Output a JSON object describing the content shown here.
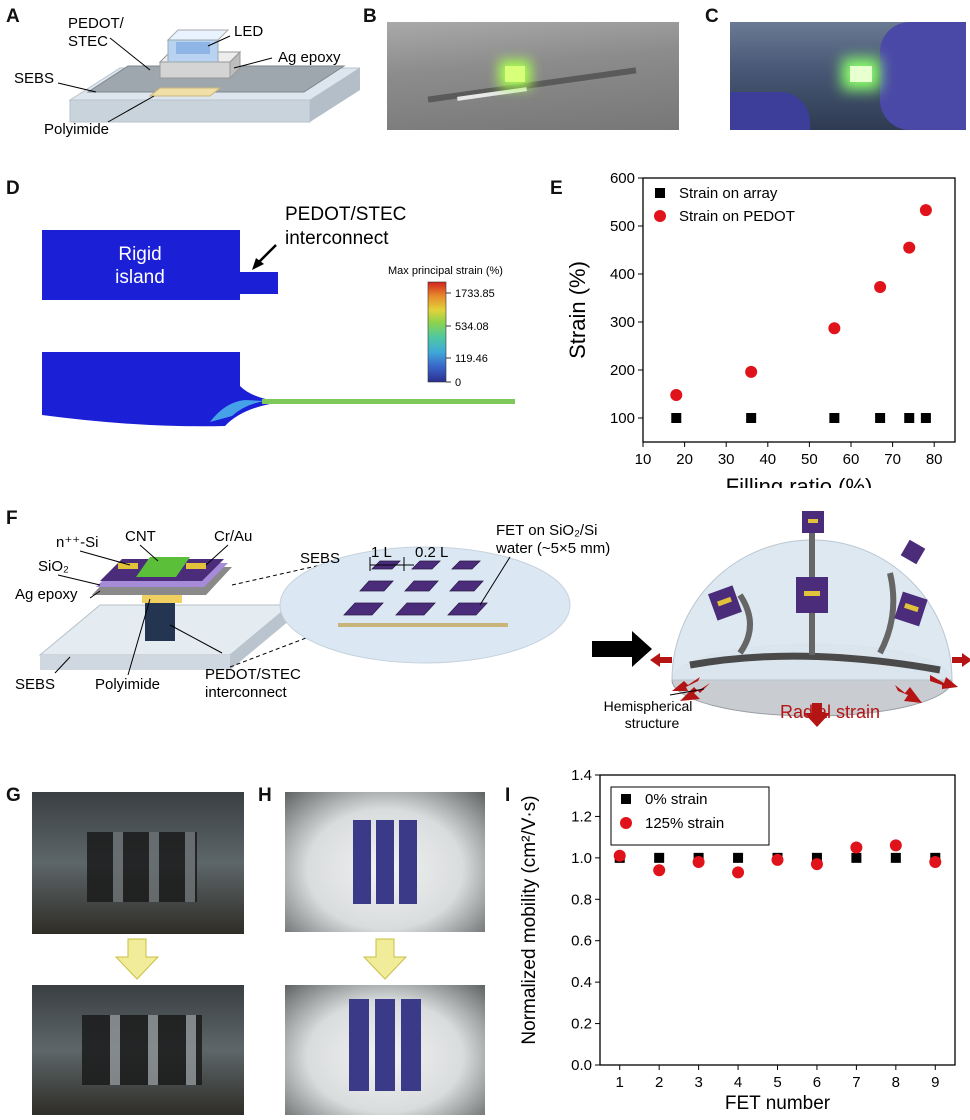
{
  "panel_labels": [
    "A",
    "B",
    "C",
    "D",
    "E",
    "F",
    "G",
    "H",
    "I"
  ],
  "panel_a": {
    "pedot": "PEDOT/",
    "stec": "STEC",
    "led": "LED",
    "ag_epoxy": "Ag epoxy",
    "sebs": "SEBS",
    "polyimide": "Polyimide"
  },
  "panel_d": {
    "island_line1": "Rigid",
    "island_line2": "island",
    "interconnect_line1": "PEDOT/STEC",
    "interconnect_line2": "interconnect",
    "colorbar_title": "Max principal strain (%)",
    "colorbar_ticks": [
      "1733.85",
      "534.08",
      "119.46",
      "0"
    ]
  },
  "panel_f": {
    "n_si": "n⁺⁺-Si",
    "cnt": "CNT",
    "cr_au": "Cr/Au",
    "sio2": "SiO₂",
    "ag_epoxy": "Ag epoxy",
    "sebs": "SEBS",
    "polyimide": "Polyimide",
    "pedot_line1": "PEDOT/STEC",
    "pedot_line2": "interconnect",
    "sebs2": "SEBS",
    "dim_1l": "1 L",
    "dim_02l": "0.2 L",
    "fet_line1": "FET on SiO₂/Si",
    "fet_line2": "water (~5×5 mm)",
    "hemi_line1": "Hemispherical",
    "hemi_line2": "structure",
    "radial": "Radial strain"
  },
  "colors": {
    "blue_model": "#1b1fd6",
    "green_strain": "#7ec85a",
    "red": "#d10a0a",
    "purple_chip": "#4a2c7a",
    "arrow_red": "#b51414"
  },
  "chart_data": [
    {
      "type": "scatter",
      "xlabel": "Filling ratio (%)",
      "ylabel": "Strain (%)",
      "xlim": [
        10,
        85
      ],
      "ylim": [
        50,
        600
      ],
      "xticks": [
        "10",
        "20",
        "30",
        "40",
        "50",
        "60",
        "70",
        "80"
      ],
      "yticks": [
        "100",
        "200",
        "300",
        "400",
        "500",
        "600"
      ],
      "legend_position": "top-left",
      "series": [
        {
          "name": "Strain on array",
          "marker": "square",
          "color": "#000000",
          "x": [
            18,
            36,
            56,
            67,
            74,
            78
          ],
          "y": [
            100,
            100,
            100,
            100,
            100,
            100
          ]
        },
        {
          "name": "Strain on PEDOT",
          "marker": "circle",
          "color": "#e0121a",
          "x": [
            18,
            36,
            56,
            67,
            74,
            78
          ],
          "y": [
            148,
            196,
            287,
            373,
            455,
            533
          ]
        }
      ]
    },
    {
      "type": "scatter",
      "xlabel": "FET number",
      "ylabel": "Normalized mobility (cm²/V·s)",
      "xlim": [
        0.5,
        9.5
      ],
      "ylim": [
        0,
        1.4
      ],
      "xticks": [
        "1",
        "2",
        "3",
        "4",
        "5",
        "6",
        "7",
        "8",
        "9"
      ],
      "yticks": [
        "0.0",
        "0.2",
        "0.4",
        "0.6",
        "0.8",
        "1.0",
        "1.2",
        "1.4"
      ],
      "legend_position": "top-left",
      "series": [
        {
          "name": "0% strain",
          "marker": "square",
          "color": "#000000",
          "x": [
            1,
            2,
            3,
            4,
            5,
            6,
            7,
            8,
            9
          ],
          "y": [
            1.0,
            1.0,
            1.0,
            1.0,
            1.0,
            1.0,
            1.0,
            1.0,
            1.0
          ]
        },
        {
          "name": "125% strain",
          "marker": "circle",
          "color": "#e0121a",
          "x": [
            1,
            2,
            3,
            4,
            5,
            6,
            7,
            8,
            9
          ],
          "y": [
            1.01,
            0.94,
            0.98,
            0.93,
            0.99,
            0.97,
            1.05,
            1.06,
            0.98
          ]
        }
      ]
    }
  ]
}
